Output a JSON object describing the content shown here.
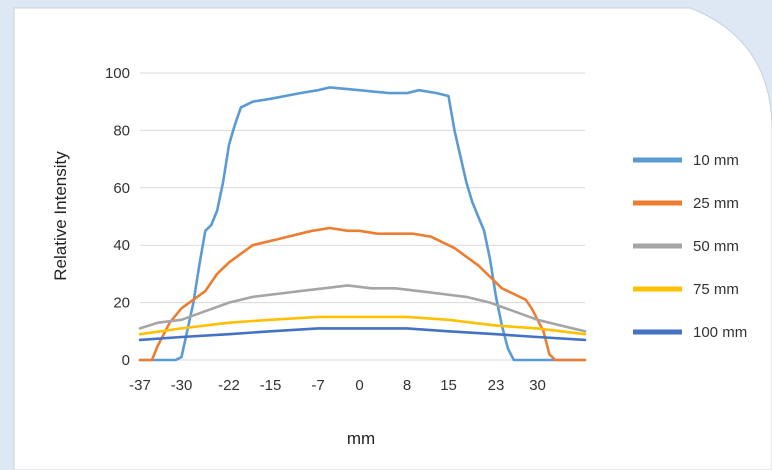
{
  "chart_data": {
    "type": "line",
    "xlabel": "mm",
    "ylabel": "Relative Intensity",
    "x_tick_labels": [
      "-37",
      "-30",
      "-22",
      "-15",
      "-7",
      "0",
      "8",
      "15",
      "23",
      "30"
    ],
    "x_ticks": [
      -37,
      -30,
      -22,
      -15,
      -7,
      0,
      8,
      15,
      23,
      30
    ],
    "xlim": [
      -37,
      38
    ],
    "ylim": [
      0,
      100
    ],
    "y_ticks": [
      0,
      20,
      40,
      60,
      80,
      100
    ],
    "grid": "horizontal",
    "legend_position": "right",
    "series": [
      {
        "name": "10 mm",
        "color": "#5b9bd5",
        "x": [
          -37,
          -31,
          -30,
          -28,
          -27,
          -26,
          -25,
          -24,
          -23,
          -22,
          -21,
          -20,
          -18,
          -15,
          -10,
          -7,
          -5,
          0,
          5,
          8,
          10,
          13,
          15,
          16,
          17,
          18,
          19,
          20,
          21,
          22,
          23,
          24,
          25,
          26,
          38
        ],
        "y": [
          0,
          0,
          1,
          20,
          33,
          45,
          47,
          52,
          62,
          75,
          82,
          88,
          90,
          91,
          93,
          94,
          95,
          94,
          93,
          93,
          94,
          93,
          92,
          80,
          71,
          62,
          55,
          50,
          45,
          35,
          22,
          12,
          4,
          0,
          0
        ]
      },
      {
        "name": "25 mm",
        "color": "#ed7d31",
        "x": [
          -37,
          -35,
          -34,
          -32,
          -30,
          -28,
          -26,
          -24,
          -22,
          -20,
          -18,
          -16,
          -14,
          -12,
          -10,
          -8,
          -5,
          -2,
          0,
          3,
          6,
          9,
          12,
          14,
          16,
          18,
          20,
          22,
          24,
          26,
          28,
          29,
          31,
          32,
          33,
          38
        ],
        "y": [
          0,
          0,
          5,
          13,
          18,
          21,
          24,
          30,
          34,
          37,
          40,
          41,
          42,
          43,
          44,
          45,
          46,
          45,
          45,
          44,
          44,
          44,
          43,
          41,
          39,
          36,
          33,
          29,
          25,
          23,
          21,
          18,
          10,
          2,
          0,
          0
        ]
      },
      {
        "name": "50 mm",
        "color": "#a5a5a5",
        "x": [
          -37,
          -34,
          -30,
          -26,
          -22,
          -18,
          -14,
          -10,
          -6,
          -2,
          2,
          6,
          10,
          14,
          18,
          22,
          26,
          30,
          34,
          38
        ],
        "y": [
          11,
          13,
          14,
          17,
          20,
          22,
          23,
          24,
          25,
          26,
          25,
          25,
          24,
          23,
          22,
          20,
          17,
          14,
          12,
          10
        ]
      },
      {
        "name": "75 mm",
        "color": "#ffc000",
        "x": [
          -37,
          -30,
          -22,
          -15,
          -7,
          0,
          8,
          15,
          23,
          30,
          38
        ],
        "y": [
          9,
          11,
          13,
          14,
          15,
          15,
          15,
          14,
          12,
          11,
          9
        ]
      },
      {
        "name": "100 mm",
        "color": "#4472c4",
        "x": [
          -37,
          -30,
          -22,
          -15,
          -7,
          0,
          8,
          15,
          23,
          30,
          38
        ],
        "y": [
          7,
          8,
          9,
          10,
          11,
          11,
          11,
          10,
          9,
          8,
          7
        ]
      }
    ]
  }
}
